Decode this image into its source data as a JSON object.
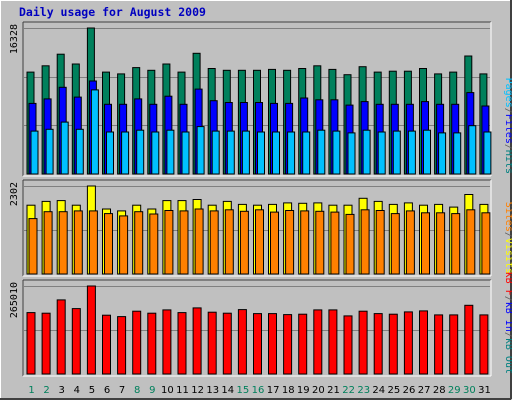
{
  "window": {
    "title": "Daily usage for August 2009",
    "title_color": "#0000c0",
    "background_color": "#c0c0c0",
    "panel_color": "#c0c0c0"
  },
  "right_labels": {
    "hits_panel": [
      "Pages",
      "/",
      "Files",
      "/",
      "Hits"
    ],
    "hits_panel_colors": [
      "#00c0ff",
      "#606060",
      "#0000ff",
      "#606060",
      "#008080"
    ],
    "sites_panel": [
      "Sites",
      "/",
      "Visits"
    ],
    "sites_panel_colors": [
      "#ff8000",
      "#606060",
      "#ffff00"
    ],
    "kb_panel": [
      "kB F",
      "/",
      "kB In",
      "/",
      "kB Out"
    ],
    "kb_panel_colors": [
      "#ff0000",
      "#606060",
      "#0000ff",
      "#606060",
      "#008080"
    ]
  },
  "colors": {
    "hits": "#00805c",
    "files": "#0000ff",
    "pages": "#00c0ff",
    "visits": "#ffff00",
    "sites": "#ff8000",
    "kbytes": "#ff0000",
    "day_weekday": "#000000",
    "day_weekend": "#00805c"
  },
  "chart_data": [
    {
      "type": "bar",
      "panel": "hits",
      "ymax_label": "16328",
      "ylim": [
        0,
        16328
      ],
      "categories": [
        "1",
        "2",
        "3",
        "4",
        "5",
        "6",
        "7",
        "8",
        "9",
        "10",
        "11",
        "12",
        "13",
        "14",
        "15",
        "16",
        "17",
        "18",
        "19",
        "20",
        "21",
        "22",
        "23",
        "24",
        "25",
        "26",
        "27",
        "28",
        "29",
        "30",
        "31"
      ],
      "series": [
        {
          "name": "Hits",
          "values": [
            11400,
            12100,
            13400,
            12300,
            16328,
            11400,
            11200,
            11900,
            11600,
            12300,
            11400,
            13500,
            11800,
            11600,
            11600,
            11600,
            11700,
            11600,
            11800,
            12100,
            11700,
            11100,
            12000,
            11400,
            11500,
            11500,
            11800,
            11200,
            11400,
            13200,
            11200
          ]
        },
        {
          "name": "Files",
          "values": [
            7900,
            8400,
            9700,
            8600,
            10400,
            7800,
            7800,
            8400,
            7800,
            8700,
            7800,
            9500,
            8200,
            8000,
            8000,
            8000,
            7900,
            7900,
            8500,
            8300,
            8300,
            7700,
            8100,
            7800,
            7800,
            7800,
            8100,
            7800,
            7800,
            9100,
            7600
          ]
        },
        {
          "name": "Pages",
          "values": [
            4800,
            5000,
            5800,
            5000,
            9400,
            4700,
            4700,
            4900,
            4700,
            4900,
            4700,
            5300,
            4800,
            4800,
            4800,
            4700,
            4700,
            4700,
            4700,
            4900,
            4800,
            4600,
            4900,
            4700,
            4800,
            4800,
            4900,
            4600,
            4600,
            5400,
            4700
          ]
        }
      ]
    },
    {
      "type": "bar",
      "panel": "sites",
      "ymax_label": "2302",
      "ylim": [
        0,
        2302
      ],
      "categories": [
        "1",
        "2",
        "3",
        "4",
        "5",
        "6",
        "7",
        "8",
        "9",
        "10",
        "11",
        "12",
        "13",
        "14",
        "15",
        "16",
        "17",
        "18",
        "19",
        "20",
        "21",
        "22",
        "23",
        "24",
        "25",
        "26",
        "27",
        "28",
        "29",
        "30",
        "31"
      ],
      "series": [
        {
          "name": "Visits",
          "values": [
            1800,
            1900,
            1920,
            1800,
            2302,
            1700,
            1650,
            1800,
            1700,
            1920,
            1920,
            1950,
            1800,
            1900,
            1820,
            1800,
            1820,
            1860,
            1850,
            1860,
            1800,
            1800,
            1980,
            1900,
            1820,
            1860,
            1800,
            1820,
            1750,
            2080,
            1820
          ]
        },
        {
          "name": "Sites",
          "values": [
            1450,
            1630,
            1630,
            1650,
            1650,
            1580,
            1520,
            1630,
            1570,
            1660,
            1650,
            1700,
            1650,
            1680,
            1640,
            1680,
            1620,
            1660,
            1650,
            1640,
            1620,
            1560,
            1680,
            1660,
            1580,
            1650,
            1600,
            1600,
            1580,
            1680,
            1600
          ]
        }
      ]
    },
    {
      "type": "bar",
      "panel": "kbytes",
      "ymax_label": "265010",
      "ylim": [
        0,
        265010
      ],
      "categories": [
        "1",
        "2",
        "3",
        "4",
        "5",
        "6",
        "7",
        "8",
        "9",
        "10",
        "11",
        "12",
        "13",
        "14",
        "15",
        "16",
        "17",
        "18",
        "19",
        "20",
        "21",
        "22",
        "23",
        "24",
        "25",
        "26",
        "27",
        "28",
        "29",
        "30",
        "31"
      ],
      "series": [
        {
          "name": "kB F",
          "values": [
            185000,
            183000,
            223000,
            197000,
            265010,
            177000,
            173000,
            189000,
            183000,
            193000,
            185000,
            199000,
            186000,
            183000,
            194000,
            182000,
            182000,
            179000,
            180000,
            193000,
            193000,
            175000,
            189000,
            182000,
            180000,
            187000,
            190000,
            178000,
            178000,
            207000,
            178000
          ]
        }
      ]
    }
  ]
}
